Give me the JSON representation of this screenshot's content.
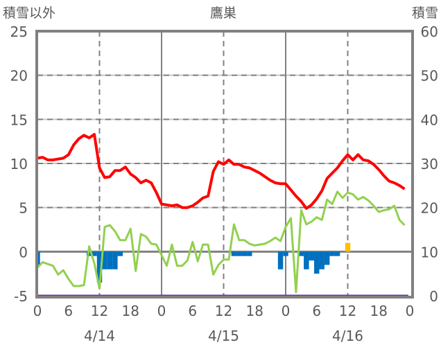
{
  "chart_data": {
    "type": "line",
    "title": "鷹巣",
    "ylabel_left": "積雪以外",
    "ylabel_right": "積雪",
    "ylim_left": [
      -5,
      25
    ],
    "ylim_right": [
      0,
      60
    ],
    "yticks_left": [
      "25",
      "20",
      "15",
      "10",
      "5",
      "0",
      "-5"
    ],
    "yticks_left_values": [
      25,
      20,
      15,
      10,
      5,
      0,
      -5
    ],
    "yticks_right": [
      "60",
      "50",
      "40",
      "30",
      "20",
      "10",
      "0"
    ],
    "xticks": [
      "0",
      "6",
      "12",
      "18",
      "0",
      "6",
      "12",
      "18",
      "0",
      "6",
      "12",
      "18",
      "0"
    ],
    "xtick_hours": [
      0,
      6,
      12,
      18,
      24,
      30,
      36,
      42,
      48,
      54,
      60,
      66,
      72
    ],
    "day_labels": [
      "4/14",
      "4/15",
      "4/16"
    ],
    "day_label_hours": [
      12,
      36,
      60
    ],
    "grid": true,
    "colors": {
      "red": "#ff0000",
      "green": "#92d050",
      "blue": "#0070c0",
      "orange": "#ffc000",
      "purple": "#7030a0",
      "axis": "#808080"
    },
    "series": [
      {
        "key": "red",
        "axis": "left",
        "type": "line",
        "values": [
          10.6,
          10.7,
          10.4,
          10.4,
          10.5,
          10.6,
          11.0,
          12.1,
          12.8,
          13.2,
          12.9,
          13.3,
          9.5,
          8.4,
          8.5,
          9.2,
          9.2,
          9.6,
          8.8,
          8.4,
          7.8,
          8.1,
          7.8,
          6.7,
          5.4,
          5.3,
          5.2,
          5.3,
          5.0,
          5.0,
          5.2,
          5.6,
          6.1,
          6.3,
          9.1,
          10.2,
          9.9,
          10.4,
          9.9,
          9.9,
          9.6,
          9.5,
          9.2,
          8.9,
          8.5,
          8.1,
          7.8,
          7.7,
          7.7,
          7.0,
          6.3,
          5.7,
          4.9,
          5.3,
          6.0,
          6.9,
          8.3,
          8.9,
          9.5,
          10.3,
          11.0,
          10.4,
          11.0,
          10.4,
          10.3,
          9.9,
          9.3,
          8.6,
          8.0,
          7.8,
          7.5,
          7.1
        ]
      },
      {
        "key": "green",
        "axis": "left",
        "type": "line",
        "values": [
          -1.8,
          -1.2,
          -1.4,
          -1.6,
          -2.6,
          -2.1,
          -3.1,
          -3.9,
          -3.9,
          -3.8,
          0.6,
          -1.3,
          -4.2,
          2.8,
          3.0,
          2.3,
          1.3,
          1.3,
          2.6,
          -2.2,
          2.0,
          1.7,
          0.9,
          0.8,
          -0.4,
          -1.6,
          0.8,
          -1.6,
          -1.6,
          -1.0,
          1.1,
          -1.1,
          0.8,
          0.8,
          -2.6,
          -1.5,
          -0.9,
          -0.9,
          3.1,
          1.3,
          1.3,
          0.9,
          0.7,
          0.8,
          0.9,
          1.2,
          1.6,
          1.2,
          2.8,
          3.8,
          -4.6,
          4.7,
          3.1,
          3.4,
          3.9,
          3.6,
          5.9,
          5.4,
          6.8,
          6.1,
          6.7,
          6.5,
          5.9,
          6.2,
          5.8,
          5.2,
          4.5,
          4.7,
          4.8,
          5.2,
          3.6,
          3.0
        ]
      },
      {
        "key": "blue",
        "axis": "left",
        "type": "bar",
        "values": [
          -1.5,
          0,
          0,
          0,
          0,
          0,
          0,
          0,
          0,
          0,
          -0.5,
          -0.5,
          -3.5,
          -2,
          -2,
          -2,
          -0.5,
          0,
          0,
          0,
          0,
          0,
          0,
          0,
          0,
          0,
          0,
          0,
          0,
          0,
          0,
          0,
          0,
          0,
          0,
          0,
          0,
          0,
          -0.5,
          -0.5,
          -0.5,
          -0.5,
          0,
          0,
          0,
          0,
          0,
          -2,
          -0.5,
          0,
          0,
          -0.5,
          -2,
          -1,
          -2.5,
          -2,
          -1.5,
          -0.5,
          -0.5,
          0,
          0,
          0,
          0,
          0,
          0,
          0,
          0,
          0,
          0,
          0,
          0,
          0
        ]
      },
      {
        "key": "orange",
        "axis": "left",
        "type": "bar",
        "values": [
          0,
          0,
          0,
          0,
          0,
          0,
          0,
          0,
          0,
          0,
          0,
          0,
          0,
          0,
          0,
          0,
          0,
          0,
          0,
          0,
          0,
          0,
          0,
          0,
          0,
          0,
          0,
          0,
          0,
          0,
          0,
          0,
          0,
          0,
          0,
          0,
          0,
          0,
          0,
          0,
          0,
          0,
          0,
          0,
          0,
          0,
          0,
          0,
          0,
          0,
          0,
          0,
          0,
          0,
          0,
          0,
          0,
          0,
          0,
          0,
          1.0,
          0,
          0,
          0,
          0,
          0,
          0,
          0,
          0,
          0,
          0,
          0
        ]
      },
      {
        "key": "purple",
        "axis": "right",
        "type": "line",
        "values": [
          0,
          0,
          0,
          0,
          0,
          0,
          0,
          0,
          0,
          0,
          0,
          0,
          0,
          0,
          0,
          0,
          0,
          0,
          0,
          0,
          0,
          0,
          0,
          0,
          0,
          0,
          0,
          0,
          0,
          0,
          0,
          0,
          0,
          0,
          0,
          0,
          0,
          0,
          0,
          0,
          0,
          0,
          0,
          0,
          0,
          0,
          0,
          0,
          0,
          0,
          0,
          0,
          0,
          0,
          0,
          0,
          0,
          0,
          0,
          0,
          0,
          0,
          0,
          0,
          0,
          0,
          0,
          0,
          0,
          0,
          0,
          0
        ]
      }
    ]
  }
}
